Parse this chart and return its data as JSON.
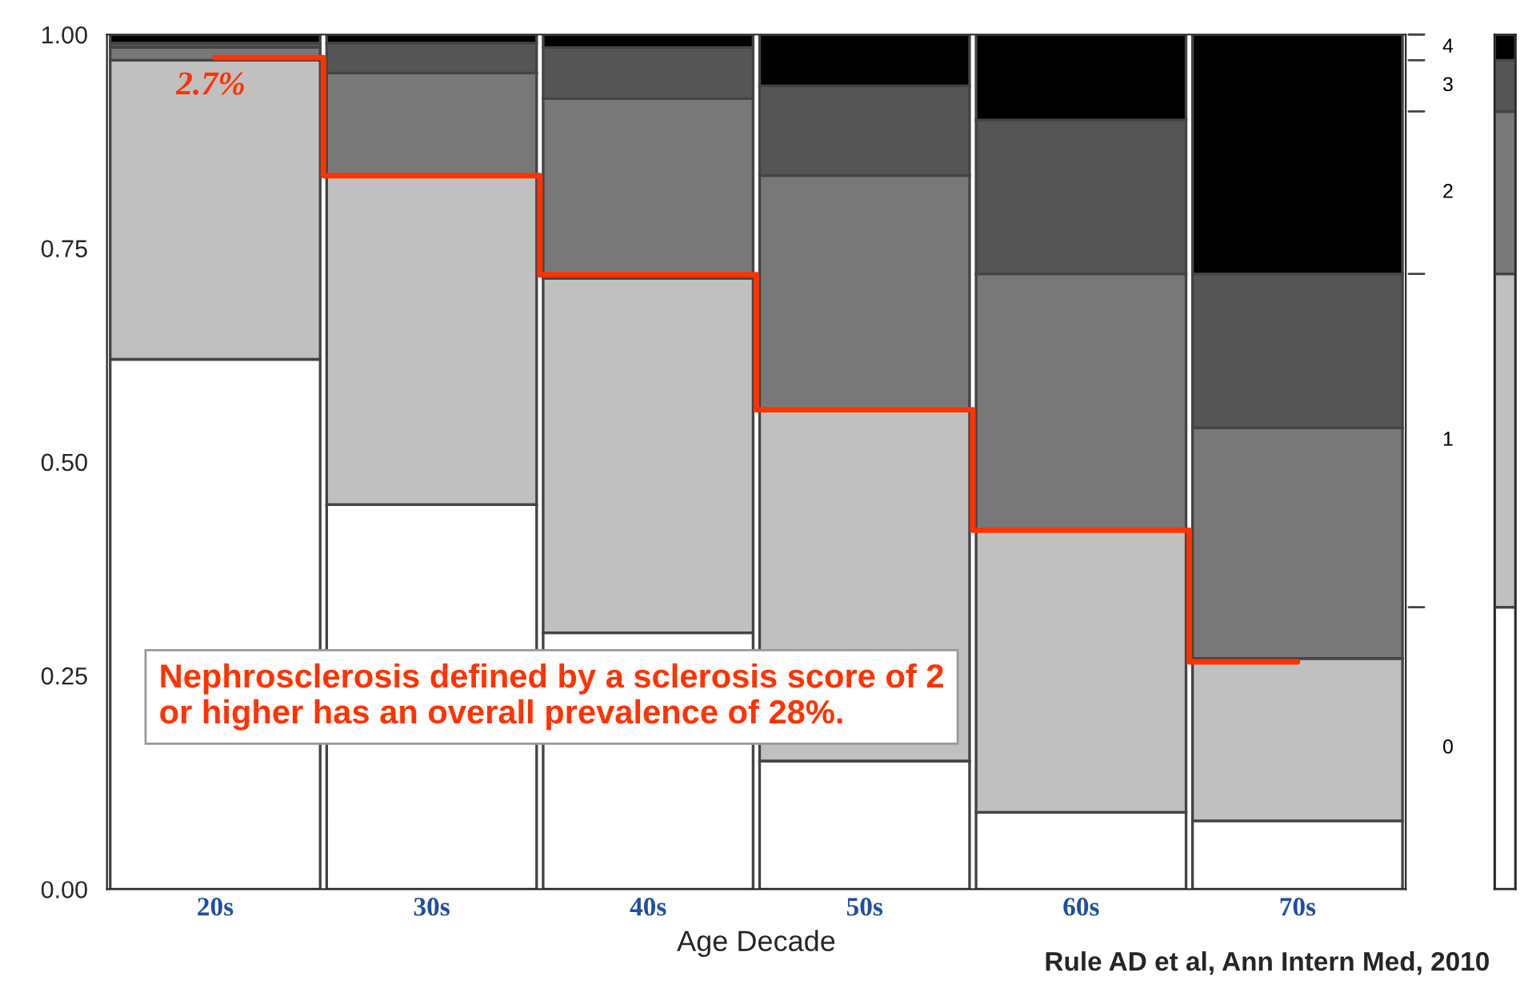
{
  "chart_data": [
    {
      "type": "bar",
      "stacked": true,
      "xlabel": "Age Decade",
      "categories": [
        "20s",
        "30s",
        "40s",
        "50s",
        "60s",
        "70s"
      ],
      "series": [
        {
          "color": "#ffffff",
          "values": [
            0.62,
            0.45,
            0.3,
            0.15,
            0.09,
            0.08
          ]
        },
        {
          "color": "#c0c0c0",
          "values": [
            0.35,
            0.385,
            0.415,
            0.41,
            0.33,
            0.19
          ]
        },
        {
          "color": "#787878",
          "values": [
            0.015,
            0.12,
            0.21,
            0.275,
            0.3,
            0.27
          ]
        },
        {
          "color": "#555555",
          "values": [
            0.005,
            0.035,
            0.06,
            0.105,
            0.18,
            0.18
          ]
        },
        {
          "color": "#000000",
          "values": [
            0.01,
            0.01,
            0.015,
            0.06,
            0.1,
            0.28
          ]
        },
        {
          "type": "step",
          "color": "#ff3300",
          "values": [
            0.973,
            0.835,
            0.719,
            0.561,
            0.42,
            0.266
          ]
        }
      ],
      "ylim": [
        0,
        1
      ],
      "yticks": [
        {
          "value": 0,
          "label": "0.00"
        },
        0.25,
        {
          "value": 0.5,
          "label": "0.50"
        },
        0.75,
        {
          "value": 1,
          "label": "1.00"
        }
      ],
      "annotations": [
        "2.7%",
        "Nephrosclerosis defined by a sclerosis score of 2\nor higher has an overall prevalence of 28%.",
        "Rule AD et al, Ann Intern Med, 2010"
      ]
    },
    {
      "type": "bar",
      "stacked": true,
      "categories": [
        null
      ],
      "tick_labels": false,
      "ylim": [
        0,
        1
      ],
      "series": [
        {
          "name": "0",
          "color": "#ffffff",
          "values": [
            0.33
          ]
        },
        {
          "name": "1",
          "color": "#c0c0c0",
          "values": [
            0.39
          ]
        },
        {
          "name": "2",
          "color": "#787878",
          "values": [
            0.19
          ]
        },
        {
          "name": "3",
          "color": "#555555",
          "values": [
            0.06
          ]
        },
        {
          "name": "4",
          "color": "#000000",
          "values": [
            0.03
          ]
        }
      ]
    }
  ]
}
